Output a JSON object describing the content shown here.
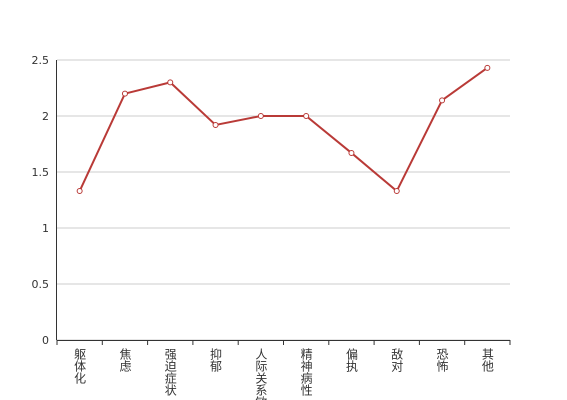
{
  "chart_data": {
    "type": "line",
    "categories": [
      "躯体化",
      "焦虑",
      "强迫症状",
      "抑郁",
      "人际关系敏感",
      "精神病性",
      "偏执",
      "敌对",
      "恐怖",
      "其他"
    ],
    "values": [
      1.33,
      2.2,
      2.3,
      1.92,
      2.0,
      2.0,
      1.67,
      1.33,
      2.14,
      2.43
    ],
    "color": "#b93a37",
    "ylim": [
      0,
      2.5
    ],
    "yticks": [
      0,
      0.5,
      1,
      1.5,
      2,
      2.5
    ],
    "grid": true
  }
}
